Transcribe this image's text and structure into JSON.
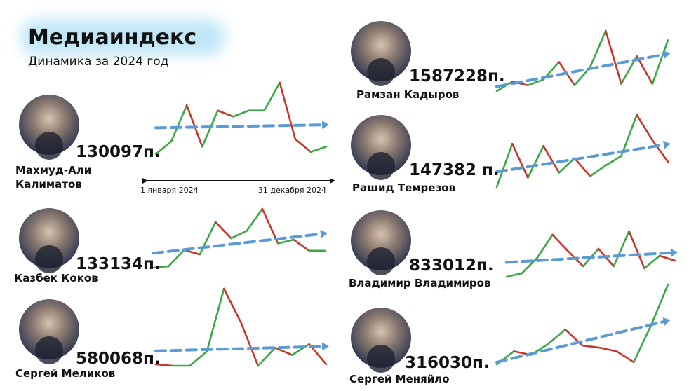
{
  "header": {
    "title": "Медиаиндекс",
    "subtitle": "Динамика за 2024 год"
  },
  "timeline": {
    "start": "1 января 2024",
    "end": "31 декабря 2024"
  },
  "people": [
    {
      "name_lines": [
        "Махмуд-Али",
        "Калиматов"
      ],
      "score": "130097п.",
      "trend": [
        5,
        22,
        70,
        15,
        63,
        55,
        63,
        63,
        100,
        25,
        8,
        15
      ]
    },
    {
      "name_lines": [
        "Казбек Коков"
      ],
      "score": "133134п.",
      "trend": [
        0,
        2,
        24,
        18,
        62,
        40,
        50,
        80,
        33,
        38,
        23,
        23
      ]
    },
    {
      "name_lines": [
        "Сергей Меликов"
      ],
      "score": "580068п.",
      "trend": [
        2,
        0,
        0,
        20,
        107,
        60,
        0,
        25,
        15,
        30,
        2
      ]
    },
    {
      "name_lines": [
        "Рамзан Кадыров"
      ],
      "score": "1587228п.",
      "trend": [
        2,
        15,
        10,
        18,
        42,
        10,
        35,
        85,
        12,
        50,
        12,
        72
      ]
    },
    {
      "name_lines": [
        "Рашид Темрезов"
      ],
      "score": "147382 п.",
      "trend": [
        0,
        60,
        13,
        57,
        20,
        40,
        15,
        30,
        43,
        100,
        65,
        35
      ]
    },
    {
      "name_lines": [
        "Владимир Владимиров"
      ],
      "score": "833012п.",
      "trend": [
        0,
        5,
        27,
        60,
        37,
        15,
        40,
        15,
        65,
        12,
        30,
        23
      ]
    },
    {
      "name_lines": [
        "Сергей Меняйло"
      ],
      "score": "316030п.",
      "trend": [
        0,
        18,
        13,
        28,
        48,
        26,
        23,
        18,
        3,
        53,
        110
      ]
    }
  ]
}
